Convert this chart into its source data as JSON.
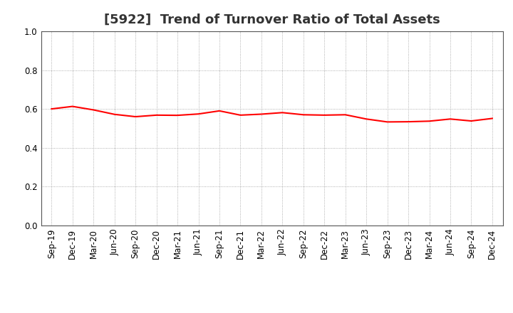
{
  "title": "[5922]  Trend of Turnover Ratio of Total Assets",
  "labels": [
    "Sep-19",
    "Dec-19",
    "Mar-20",
    "Jun-20",
    "Sep-20",
    "Dec-20",
    "Mar-21",
    "Jun-21",
    "Sep-21",
    "Dec-21",
    "Mar-22",
    "Jun-22",
    "Sep-22",
    "Dec-22",
    "Mar-23",
    "Jun-23",
    "Sep-23",
    "Dec-23",
    "Mar-24",
    "Jun-24",
    "Sep-24",
    "Dec-24"
  ],
  "values": [
    0.6,
    0.613,
    0.595,
    0.572,
    0.56,
    0.568,
    0.567,
    0.574,
    0.59,
    0.568,
    0.573,
    0.581,
    0.57,
    0.568,
    0.57,
    0.548,
    0.533,
    0.534,
    0.537,
    0.548,
    0.538,
    0.551
  ],
  "line_color": "#FF0000",
  "line_width": 1.5,
  "ylim": [
    0.0,
    1.0
  ],
  "yticks": [
    0.0,
    0.2,
    0.4,
    0.6,
    0.8,
    1.0
  ],
  "grid_color": "#999999",
  "background_color": "#ffffff",
  "title_fontsize": 13,
  "tick_fontsize": 8.5
}
